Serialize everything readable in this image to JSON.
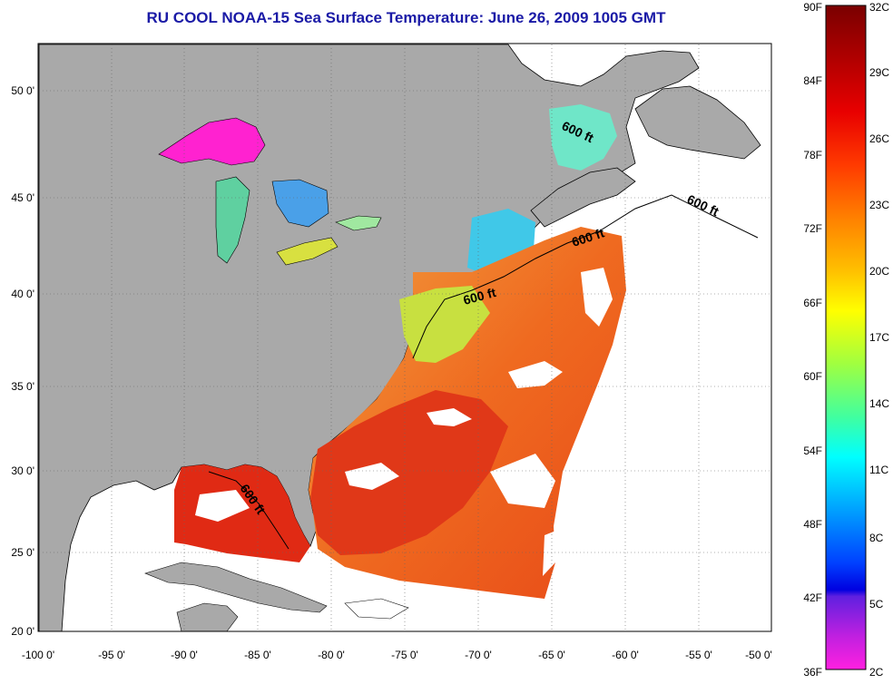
{
  "title": "RU COOL  NOAA-15  Sea Surface Temperature:  June 26, 2009 1005 GMT",
  "axes": {
    "lat_labels": [
      "50 0'",
      "45 0'",
      "40 0'",
      "35 0'",
      "30 0'",
      "25 0'",
      "20 0'"
    ],
    "lon_labels": [
      "-100 0'",
      "-95 0'",
      "-90 0'",
      "-85 0'",
      "-80 0'",
      "-75 0'",
      "-70 0'",
      "-65 0'",
      "-60 0'",
      "-55 0'",
      "-50 0'"
    ]
  },
  "contour_label": "600 ft",
  "colorbar": {
    "fahrenheit": [
      "90F",
      "84F",
      "78F",
      "72F",
      "66F",
      "60F",
      "54F",
      "48F",
      "42F",
      "36F"
    ],
    "celsius": [
      "32C",
      "29C",
      "26C",
      "23C",
      "20C",
      "17C",
      "14C",
      "11C",
      "8C",
      "5C",
      "2C"
    ]
  },
  "colors": {
    "land": "#a9a9a9",
    "title": "#1a1aa6",
    "warm": "#e8300f",
    "hot": "#c81010",
    "orange": "#f07a20",
    "yellow": "#f2e020",
    "cyan": "#40e0e0",
    "blue": "#3080f0",
    "magenta": "#ff20d0"
  },
  "map_extent": {
    "lon_min": -100,
    "lon_max": -50,
    "lat_min": 20,
    "lat_max": 52.5
  }
}
